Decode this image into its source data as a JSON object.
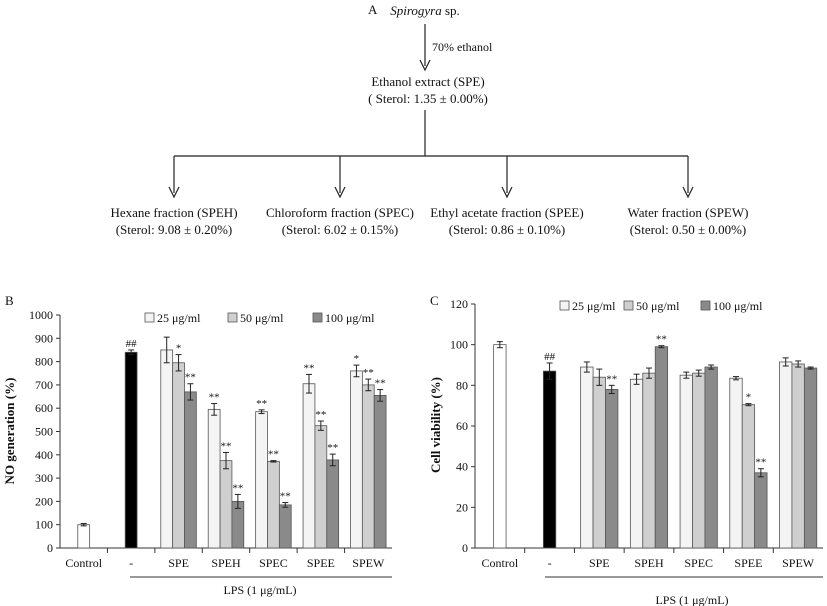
{
  "flowchart": {
    "panel_label": "A",
    "root": "Spirogyra",
    "root_suffix": " sp.",
    "arrow_label": "70% ethanol",
    "extract": {
      "name": "Ethanol extract (SPE)",
      "sterol": "( Sterol: 1.35 ± 0.00%)"
    },
    "fractions": [
      {
        "name": "Hexane fraction (SPEH)",
        "sterol": "(Sterol: 9.08 ± 0.20%)"
      },
      {
        "name": "Chloroform fraction (SPEC)",
        "sterol": "(Sterol: 6.02 ± 0.15%)"
      },
      {
        "name": "Ethyl acetate fraction (SPEE)",
        "sterol": "(Sterol: 0.86 ± 0.10%)"
      },
      {
        "name": "Water fraction (SPEW)",
        "sterol": "(Sterol: 0.50 ± 0.00%)"
      }
    ]
  },
  "colors": {
    "c25": "#f4f4f4",
    "c50": "#cfcfcf",
    "c100": "#8a8a8a",
    "lps": "#000000",
    "control": "#ffffff"
  },
  "chart_data": [
    {
      "type": "bar",
      "panel_label": "B",
      "ylabel": "NO   generation (%)",
      "ylim": [
        0,
        1000
      ],
      "yticks": [
        0,
        100,
        200,
        300,
        400,
        500,
        600,
        700,
        800,
        900,
        1000
      ],
      "group_xlabel": "LPS (1 μg/mL)",
      "legend": [
        {
          "key": "c25",
          "label": "25  μg/ml"
        },
        {
          "key": "c50",
          "label": "50 μg/ml"
        },
        {
          "key": "c100",
          "label": "100 μg/ml"
        }
      ],
      "groups": [
        {
          "label": "Control",
          "bars": [
            {
              "color": "control",
              "value": 100,
              "err": 5,
              "mark": ""
            }
          ]
        },
        {
          "label": "-",
          "bars": [
            {
              "color": "lps",
              "value": 840,
              "err": 10,
              "mark": "##"
            }
          ]
        },
        {
          "label": "SPE",
          "bars": [
            {
              "color": "c25",
              "value": 850,
              "err": 55,
              "mark": ""
            },
            {
              "color": "c50",
              "value": 795,
              "err": 35,
              "mark": "*"
            },
            {
              "color": "c100",
              "value": 670,
              "err": 35,
              "mark": "**"
            }
          ]
        },
        {
          "label": "SPEH",
          "bars": [
            {
              "color": "c25",
              "value": 595,
              "err": 25,
              "mark": "**"
            },
            {
              "color": "c50",
              "value": 375,
              "err": 35,
              "mark": "**"
            },
            {
              "color": "c100",
              "value": 200,
              "err": 30,
              "mark": "**"
            }
          ]
        },
        {
          "label": "SPEC",
          "bars": [
            {
              "color": "c25",
              "value": 585,
              "err": 8,
              "mark": "**"
            },
            {
              "color": "c50",
              "value": 372,
              "err": 3,
              "mark": "**"
            },
            {
              "color": "c100",
              "value": 185,
              "err": 10,
              "mark": "**"
            }
          ]
        },
        {
          "label": "SPEE",
          "bars": [
            {
              "color": "c25",
              "value": 705,
              "err": 40,
              "mark": "**"
            },
            {
              "color": "c50",
              "value": 525,
              "err": 20,
              "mark": "**"
            },
            {
              "color": "c100",
              "value": 378,
              "err": 25,
              "mark": "**"
            }
          ]
        },
        {
          "label": "SPEW",
          "bars": [
            {
              "color": "c25",
              "value": 760,
              "err": 25,
              "mark": "*"
            },
            {
              "color": "c50",
              "value": 700,
              "err": 25,
              "mark": "**"
            },
            {
              "color": "c100",
              "value": 655,
              "err": 25,
              "mark": "**"
            }
          ]
        }
      ]
    },
    {
      "type": "bar",
      "panel_label": "C",
      "ylabel": "Cell viability (%)",
      "ylim": [
        0,
        120
      ],
      "yticks": [
        0,
        20,
        40,
        60,
        80,
        100,
        120
      ],
      "group_xlabel": "LPS (1 μg/mL)",
      "legend": [
        {
          "key": "c25",
          "label": "25 μg/ml"
        },
        {
          "key": "c50",
          "label": "50 μg/ml"
        },
        {
          "key": "c100",
          "label": "100 μg/ml"
        }
      ],
      "groups": [
        {
          "label": "Control",
          "bars": [
            {
              "color": "control",
              "value": 100,
              "err": 1.5,
              "mark": ""
            }
          ]
        },
        {
          "label": "-",
          "bars": [
            {
              "color": "lps",
              "value": 87,
              "err": 4,
              "mark": "##"
            }
          ]
        },
        {
          "label": "SPE",
          "bars": [
            {
              "color": "c25",
              "value": 89,
              "err": 2.5,
              "mark": ""
            },
            {
              "color": "c50",
              "value": 84,
              "err": 4,
              "mark": ""
            },
            {
              "color": "c100",
              "value": 78,
              "err": 2,
              "mark": "**"
            }
          ]
        },
        {
          "label": "SPEH",
          "bars": [
            {
              "color": "c25",
              "value": 83,
              "err": 2.5,
              "mark": ""
            },
            {
              "color": "c50",
              "value": 86,
              "err": 2.5,
              "mark": ""
            },
            {
              "color": "c100",
              "value": 99,
              "err": 0.5,
              "mark": "**"
            }
          ]
        },
        {
          "label": "SPEC",
          "bars": [
            {
              "color": "c25",
              "value": 85,
              "err": 1.5,
              "mark": ""
            },
            {
              "color": "c50",
              "value": 86,
              "err": 1.5,
              "mark": ""
            },
            {
              "color": "c100",
              "value": 89,
              "err": 1,
              "mark": ""
            }
          ]
        },
        {
          "label": "SPEE",
          "bars": [
            {
              "color": "c25",
              "value": 83.5,
              "err": 0.8,
              "mark": ""
            },
            {
              "color": "c50",
              "value": 70.5,
              "err": 0.5,
              "mark": "*"
            },
            {
              "color": "c100",
              "value": 37,
              "err": 2,
              "mark": "**"
            }
          ]
        },
        {
          "label": "SPEW",
          "bars": [
            {
              "color": "c25",
              "value": 91.5,
              "err": 2,
              "mark": ""
            },
            {
              "color": "c50",
              "value": 90.5,
              "err": 1.5,
              "mark": ""
            },
            {
              "color": "c100",
              "value": 88.5,
              "err": 0.5,
              "mark": ""
            }
          ]
        }
      ]
    }
  ]
}
